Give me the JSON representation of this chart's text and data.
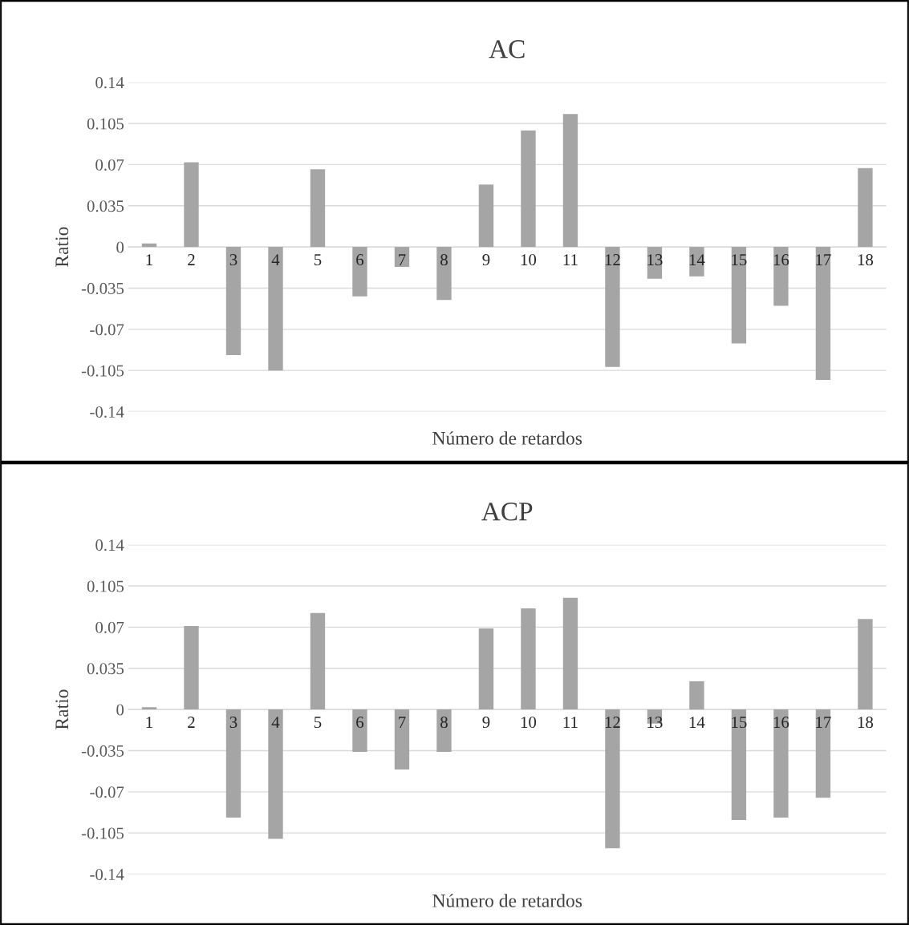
{
  "chart_data": [
    {
      "type": "bar",
      "title": "AC",
      "xlabel": "Número de retardos",
      "ylabel": "Ratio",
      "categories": [
        "1",
        "2",
        "3",
        "4",
        "5",
        "6",
        "7",
        "8",
        "9",
        "10",
        "11",
        "12",
        "13",
        "14",
        "15",
        "16",
        "17",
        "18"
      ],
      "series": [
        {
          "color": "#a5a5a5",
          "values": [
            0.003,
            0.072,
            -0.092,
            -0.105,
            0.066,
            -0.042,
            -0.017,
            -0.045,
            0.053,
            0.099,
            0.113,
            -0.102,
            -0.027,
            -0.025,
            -0.082,
            -0.05,
            -0.113,
            0.067
          ]
        }
      ],
      "ylim": [
        -0.14,
        0.14
      ],
      "yticks": [
        -0.14,
        -0.105,
        -0.07,
        -0.035,
        0,
        0.035,
        0.07,
        0.105,
        0.14
      ],
      "grid": "y",
      "legend": false
    },
    {
      "type": "bar",
      "title": "ACP",
      "xlabel": "Número de retardos",
      "ylabel": "Ratio",
      "categories": [
        "1",
        "2",
        "3",
        "4",
        "5",
        "6",
        "7",
        "8",
        "9",
        "10",
        "11",
        "12",
        "13",
        "14",
        "15",
        "16",
        "17",
        "18"
      ],
      "series": [
        {
          "color": "#a5a5a5",
          "values": [
            0.002,
            0.071,
            -0.092,
            -0.11,
            0.082,
            -0.036,
            -0.051,
            -0.036,
            0.069,
            0.086,
            0.095,
            -0.118,
            -0.012,
            0.024,
            -0.094,
            -0.092,
            -0.075,
            0.077
          ]
        }
      ],
      "ylim": [
        -0.14,
        0.14
      ],
      "yticks": [
        -0.14,
        -0.105,
        -0.07,
        -0.035,
        0,
        0.035,
        0.07,
        0.105,
        0.14
      ],
      "grid": "y",
      "legend": false
    }
  ]
}
